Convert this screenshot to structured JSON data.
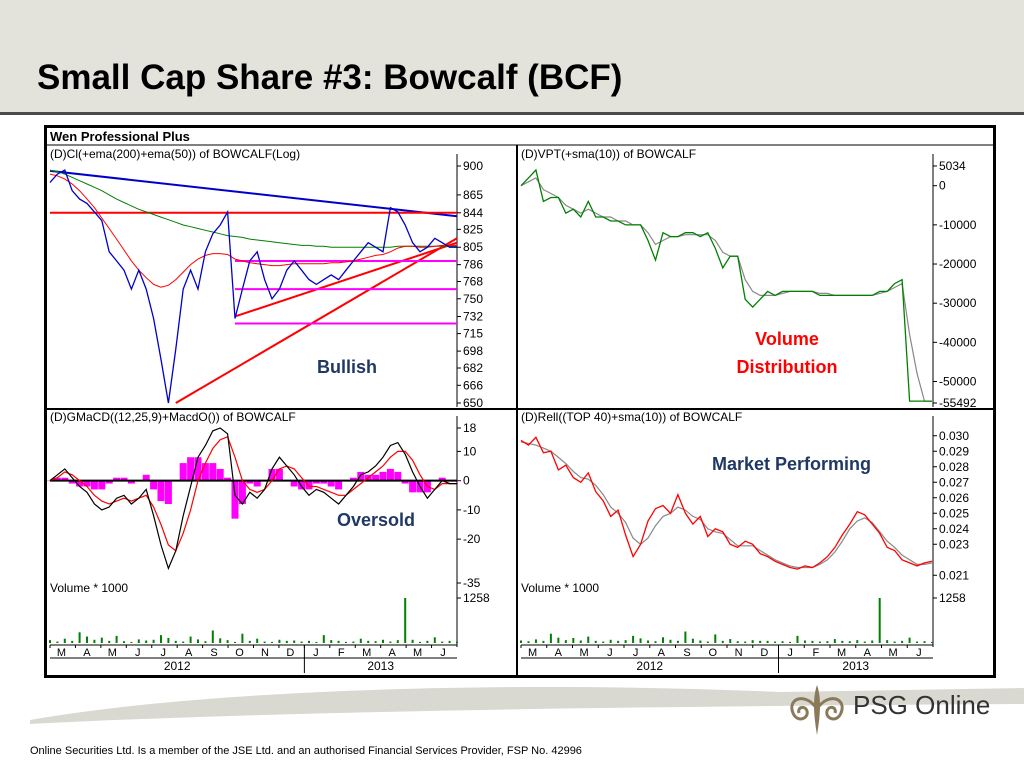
{
  "slide": {
    "title": "Small Cap Share #3: Bowcalf (BCF)",
    "disclaimer": "Online Securities Ltd. Is a member of the JSE Ltd. and an authorised Financial Services Provider, FSP No. 42996",
    "logo_text": "PSG Online"
  },
  "chart_window_title": "Wen Professional Plus",
  "colors": {
    "price": "#0000cc",
    "ema200": "#008000",
    "ema50": "#ff0000",
    "trend_red": "#ff0000",
    "trend_blue": "#0000cc",
    "magenta": "#ff00ff",
    "vpt": "#008000",
    "sma": "#888888",
    "rel": "#ff0000",
    "annotation_blue": "#1f3864",
    "annotation_red": "#ff0000"
  },
  "chart_data": [
    {
      "type": "line",
      "title": "(D)Cl(+ema(200)+ema(50)) of BOWCALF(Log)",
      "y_ticks": [
        "900",
        "865",
        "844",
        "825",
        "805",
        "786",
        "768",
        "750",
        "732",
        "715",
        "698",
        "682",
        "666",
        "650"
      ],
      "ylim": [
        650,
        900
      ],
      "log_scale": true,
      "annotation": "Bullish",
      "series": [
        {
          "values": [
            880,
            890,
            895,
            870,
            860,
            855,
            845,
            835,
            800,
            790,
            780,
            760,
            780,
            760,
            730,
            690,
            650,
            700,
            760,
            780,
            760,
            800,
            820,
            830,
            845,
            730,
            760,
            790,
            800,
            770,
            750,
            760,
            780,
            790,
            780,
            770,
            765,
            770,
            775,
            770,
            780,
            790,
            800,
            810,
            805,
            800,
            850,
            845,
            830,
            810,
            800,
            805,
            815,
            810,
            805,
            805
          ]
        },
        {
          "values": [
            895,
            893,
            890,
            886,
            882,
            878,
            874,
            870,
            865,
            860,
            856,
            852,
            848,
            845,
            842,
            839,
            836,
            833,
            830,
            828,
            826,
            824,
            822,
            820,
            818,
            817,
            816,
            814,
            813,
            812,
            811,
            810,
            809,
            808,
            807,
            807,
            806,
            806,
            805,
            805,
            805,
            805,
            805,
            805,
            805,
            805,
            805,
            806,
            806,
            806,
            806,
            806,
            806,
            806,
            806,
            806
          ]
        },
        {
          "values": [
            890,
            888,
            884,
            878,
            870,
            860,
            850,
            838,
            826,
            814,
            802,
            790,
            780,
            772,
            765,
            762,
            764,
            770,
            778,
            786,
            792,
            796,
            798,
            798,
            797,
            792,
            790,
            788,
            787,
            786,
            785,
            785,
            786,
            787,
            787,
            787,
            787,
            787,
            788,
            788,
            789,
            790,
            792,
            794,
            796,
            797,
            800,
            804,
            806,
            806,
            805,
            805,
            806,
            807,
            807,
            807
          ]
        }
      ],
      "lines": [
        {
          "name": "",
          "from": [
            0,
            894
          ],
          "to": [
            55,
            840
          ]
        },
        {
          "name": "",
          "from": [
            0,
            844
          ],
          "to": [
            55,
            844
          ]
        },
        {
          "name": "",
          "from": [
            17,
            650
          ],
          "to": [
            55,
            815
          ]
        },
        {
          "name": "",
          "from": [
            25,
            732
          ],
          "to": [
            55,
            810
          ]
        },
        {
          "name": "",
          "from": [
            25,
            790
          ],
          "to": [
            55,
            790
          ]
        },
        {
          "name": "",
          "from": [
            25,
            760
          ],
          "to": [
            55,
            760
          ]
        },
        {
          "name": "",
          "from": [
            25,
            725
          ],
          "to": [
            55,
            725
          ]
        }
      ]
    },
    {
      "type": "line",
      "title": "(D)VPT(+sma(10)) of BOWCALF",
      "y_ticks": [
        "5034",
        "0",
        "-10000",
        "-20000",
        "-30000",
        "-40000",
        "-50000",
        "-55492"
      ],
      "ylim": [
        -55492,
        5034
      ],
      "annotation": "Volume Distribution",
      "series": [
        {
          "values": [
            0,
            2000,
            4000,
            -4000,
            -3000,
            -3000,
            -7000,
            -6000,
            -8000,
            -4000,
            -8000,
            -8000,
            -9000,
            -9000,
            -10000,
            -10000,
            -10000,
            -14000,
            -19000,
            -12000,
            -13000,
            -13000,
            -12000,
            -12000,
            -13000,
            -12000,
            -16000,
            -21000,
            -18000,
            -18000,
            -29000,
            -31000,
            -29000,
            -27000,
            -28000,
            -27000,
            -27000,
            -27000,
            -27000,
            -27000,
            -28000,
            -28000,
            -28000,
            -28000,
            -28000,
            -28000,
            -28000,
            -28000,
            -27000,
            -27000,
            -25000,
            -24000,
            -55000,
            -55000,
            -55000,
            -55000
          ]
        },
        {
          "values": [
            0,
            1000,
            2000,
            -1000,
            -2000,
            -3000,
            -5000,
            -6000,
            -7000,
            -6000,
            -7000,
            -8000,
            -8000,
            -9000,
            -9000,
            -10000,
            -10000,
            -12000,
            -15000,
            -14000,
            -13000,
            -13000,
            -12500,
            -12500,
            -12500,
            -12500,
            -14000,
            -17000,
            -18000,
            -18000,
            -24000,
            -27000,
            -28000,
            -28000,
            -28000,
            -27500,
            -27000,
            -27000,
            -27000,
            -27000,
            -27500,
            -27500,
            -28000,
            -28000,
            -28000,
            -28000,
            -28000,
            -28000,
            -27500,
            -27000,
            -26000,
            -25000,
            -38000,
            -48000,
            -55000,
            -55000
          ]
        }
      ]
    },
    {
      "type": "line",
      "title": "(D)GMaCD((12,25,9)+MacdO()) of BOWCALF",
      "y_ticks": [
        "18",
        "10",
        "0",
        "-10",
        "-20",
        "-35"
      ],
      "ylim": [
        -35,
        18
      ],
      "annotation": "Oversold",
      "series": [
        {
          "values": [
            0,
            2,
            4,
            1,
            -2,
            -4,
            -8,
            -10,
            -9,
            -6,
            -5,
            -8,
            -6,
            -3,
            -12,
            -22,
            -30,
            -24,
            -12,
            -2,
            8,
            12,
            17,
            18,
            16,
            -5,
            -8,
            -4,
            -6,
            -3,
            4,
            8,
            5,
            2,
            -2,
            -5,
            -3,
            -4,
            -6,
            -8,
            -5,
            -2,
            2,
            3,
            5,
            8,
            12,
            13,
            9,
            3,
            -2,
            -6,
            -3,
            0,
            -1,
            -1
          ]
        },
        {
          "values": [
            0,
            1,
            3,
            2,
            0,
            -2,
            -5,
            -7,
            -8,
            -7,
            -6,
            -7,
            -6,
            -5,
            -9,
            -15,
            -22,
            -24,
            -18,
            -10,
            0,
            6,
            11,
            14,
            15,
            8,
            0,
            -3,
            -4,
            -3,
            0,
            4,
            5,
            4,
            1,
            -2,
            -2,
            -3,
            -4,
            -5,
            -5,
            -3,
            -1,
            1,
            3,
            5,
            8,
            10,
            10,
            7,
            2,
            -2,
            -3,
            -1,
            -1,
            -1
          ]
        },
        {
          "values": [
            0,
            1,
            1,
            -1,
            -2,
            -2,
            -3,
            -3,
            -1,
            1,
            1,
            -1,
            0,
            2,
            -3,
            -7,
            -8,
            0,
            6,
            8,
            8,
            6,
            6,
            4,
            1,
            -13,
            -8,
            -1,
            -2,
            0,
            4,
            4,
            0,
            -2,
            -3,
            -3,
            -1,
            -1,
            -2,
            -3,
            0,
            1,
            3,
            2,
            2,
            3,
            4,
            3,
            -1,
            -4,
            -4,
            -4,
            0,
            1,
            0,
            0
          ]
        }
      ]
    },
    {
      "type": "line",
      "title": "(D)Rell((TOP 40)+sma(10)) of BOWCALF",
      "y_ticks": [
        "0.030",
        "0.029",
        "0.028",
        "0.027",
        "0.026",
        "0.025",
        "0.024",
        "0.023",
        "0.021"
      ],
      "ylim": [
        0.0205,
        0.0305
      ],
      "annotation": "Market Performing",
      "series": [
        {
          "values": [
            0.0297,
            0.0294,
            0.0299,
            0.0289,
            0.029,
            0.0278,
            0.0281,
            0.0273,
            0.027,
            0.0276,
            0.0264,
            0.0258,
            0.0248,
            0.0252,
            0.0236,
            0.0222,
            0.023,
            0.0245,
            0.0253,
            0.0255,
            0.025,
            0.0262,
            0.025,
            0.0243,
            0.0248,
            0.0235,
            0.024,
            0.0238,
            0.023,
            0.0228,
            0.0232,
            0.023,
            0.0224,
            0.0222,
            0.0219,
            0.0217,
            0.0215,
            0.0214,
            0.0216,
            0.0215,
            0.0218,
            0.0222,
            0.0228,
            0.0236,
            0.0243,
            0.0251,
            0.0249,
            0.0243,
            0.0237,
            0.0228,
            0.0226,
            0.022,
            0.0218,
            0.0216,
            0.0218,
            0.0219
          ]
        },
        {
          "values": [
            0.0296,
            0.0295,
            0.0294,
            0.0292,
            0.029,
            0.0286,
            0.0282,
            0.0277,
            0.0273,
            0.0272,
            0.0268,
            0.0262,
            0.0254,
            0.025,
            0.0244,
            0.0234,
            0.023,
            0.0234,
            0.0242,
            0.0248,
            0.025,
            0.0254,
            0.0252,
            0.0248,
            0.0246,
            0.024,
            0.0238,
            0.0237,
            0.0233,
            0.0229,
            0.0229,
            0.0229,
            0.0226,
            0.0223,
            0.022,
            0.0218,
            0.0216,
            0.0215,
            0.0215,
            0.0215,
            0.0217,
            0.022,
            0.0225,
            0.0232,
            0.024,
            0.0245,
            0.0247,
            0.0244,
            0.0238,
            0.0232,
            0.0228,
            0.0223,
            0.022,
            0.0217,
            0.0217,
            0.0218
          ]
        }
      ]
    },
    {
      "type": "bar",
      "title": "Volume * 1000",
      "y_ticks": [
        "1258"
      ],
      "ylim": [
        0,
        1258
      ],
      "values": [
        80,
        40,
        120,
        60,
        300,
        180,
        90,
        150,
        60,
        200,
        50,
        30,
        100,
        70,
        90,
        220,
        140,
        60,
        40,
        180,
        100,
        50,
        350,
        130,
        80,
        30,
        260,
        60,
        120,
        40,
        30,
        90,
        60,
        70,
        40,
        60,
        30,
        220,
        80,
        60,
        30,
        40,
        120,
        60,
        50,
        90,
        40,
        80,
        1258,
        90,
        30,
        60,
        160,
        40,
        60,
        30
      ]
    },
    {
      "type": "bar",
      "title": "Volume * 1000",
      "y_ticks": [
        "1258"
      ],
      "ylim": [
        0,
        1258
      ],
      "values": [
        70,
        50,
        100,
        60,
        260,
        150,
        80,
        140,
        70,
        180,
        60,
        40,
        90,
        60,
        80,
        200,
        130,
        70,
        50,
        160,
        90,
        60,
        320,
        120,
        70,
        40,
        240,
        60,
        110,
        50,
        40,
        80,
        60,
        60,
        40,
        50,
        30,
        200,
        70,
        60,
        40,
        50,
        110,
        60,
        50,
        80,
        40,
        70,
        1258,
        80,
        40,
        60,
        150,
        40,
        50,
        30
      ]
    }
  ],
  "time_axis": {
    "months": [
      "M",
      "A",
      "M",
      "J",
      "J",
      "A",
      "S",
      "O",
      "N",
      "D",
      "J",
      "F",
      "M",
      "A",
      "M",
      "J"
    ],
    "years": [
      "2012",
      "2013"
    ]
  }
}
